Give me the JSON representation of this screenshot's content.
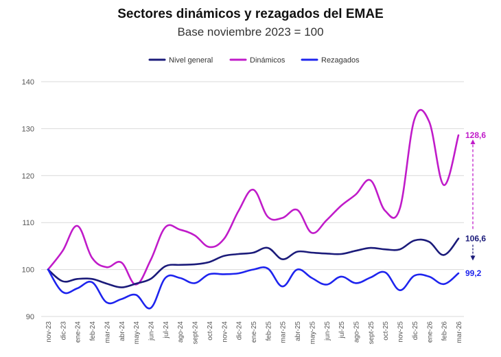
{
  "chart_data": {
    "type": "line",
    "title": "Sectores dinámicos y rezagados del EMAE",
    "subtitle": "Base noviembre 2023 = 100",
    "categories": [
      "nov-23",
      "dic-23",
      "ene-24",
      "feb-24",
      "mar-24",
      "abr-24",
      "may-24",
      "jun-24",
      "jul-24",
      "ago-24",
      "sept-24",
      "oct-24",
      "nov-24",
      "dic-24",
      "ene-25",
      "feb-25",
      "mar-25",
      "abr-25",
      "may-25",
      "jun-25",
      "jul-25",
      "ago-25",
      "sept-25",
      "oct-25",
      "nov-25",
      "dic-25",
      "ene-26",
      "feb-26",
      "mar-26"
    ],
    "ylim": [
      90,
      140
    ],
    "yticks": [
      90,
      100,
      110,
      120,
      130,
      140
    ],
    "grid": true,
    "legend_position": "top",
    "series": [
      {
        "name": "Nivel general",
        "color": "#1b1b7a",
        "values": [
          100,
          97.5,
          98.0,
          98.0,
          97.0,
          96.2,
          97.0,
          98.0,
          100.7,
          101.0,
          101.1,
          101.6,
          102.9,
          103.3,
          103.6,
          104.6,
          102.2,
          103.8,
          103.6,
          103.4,
          103.3,
          104.0,
          104.6,
          104.3,
          104.3,
          106.2,
          105.9,
          103.1,
          106.6
        ]
      },
      {
        "name": "Dinámicos",
        "color": "#c01bc9",
        "values": [
          100,
          104.0,
          109.3,
          102.5,
          100.5,
          101.5,
          96.8,
          102.0,
          109.0,
          108.5,
          107.3,
          104.8,
          106.5,
          112.5,
          117.0,
          111.2,
          111.0,
          112.7,
          107.8,
          110.5,
          113.6,
          116.0,
          119.0,
          112.5,
          113.0,
          132.0,
          131.5,
          118.0,
          128.6
        ]
      },
      {
        "name": "Rezagados",
        "color": "#1e24ee",
        "values": [
          100,
          95.2,
          96.0,
          97.3,
          93.0,
          93.7,
          94.6,
          91.8,
          98.2,
          98.2,
          97.1,
          99.0,
          99.0,
          99.2,
          100.0,
          100.2,
          96.4,
          100.0,
          98.2,
          96.8,
          98.5,
          97.1,
          98.3,
          99.4,
          95.6,
          98.7,
          98.5,
          96.9,
          99.2
        ]
      }
    ],
    "end_labels": [
      {
        "series": "Dinámicos",
        "text": "128,6",
        "color": "#c01bc9"
      },
      {
        "series": "Nivel general",
        "text": "106,6",
        "color": "#1b1b7a"
      },
      {
        "series": "Rezagados",
        "text": "99,2",
        "color": "#1e24ee"
      }
    ]
  }
}
